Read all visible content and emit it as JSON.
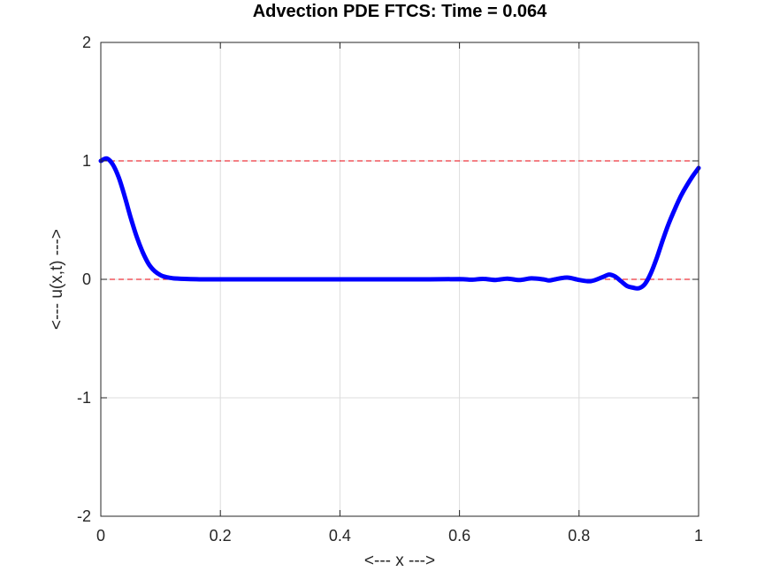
{
  "chart_data": {
    "type": "line",
    "title": "Advection PDE FTCS: Time = 0.064",
    "xlabel": "<--- x --->",
    "ylabel": "<--- u(x,t) --->",
    "xlim": [
      0,
      1
    ],
    "ylim": [
      -2,
      2
    ],
    "xticks": [
      0,
      0.2,
      0.4,
      0.6,
      0.8,
      1
    ],
    "yticks": [
      -2,
      -1,
      0,
      1,
      2
    ],
    "xtick_labels": [
      "0",
      "0.2",
      "0.4",
      "0.6",
      "0.8",
      "1"
    ],
    "ytick_labels": [
      "-2",
      "-1",
      "0",
      "1",
      "2"
    ],
    "grid": true,
    "reference_lines": [
      {
        "y": 1,
        "style": "dashed",
        "color": "#e8000b"
      },
      {
        "y": 0,
        "style": "dashed",
        "color": "#e8000b"
      }
    ],
    "series": [
      {
        "color": "#0000ff",
        "x": [
          0,
          0.01,
          0.02,
          0.03,
          0.04,
          0.05,
          0.06,
          0.07,
          0.08,
          0.09,
          0.1,
          0.11,
          0.12,
          0.14,
          0.16,
          0.2,
          0.3,
          0.4,
          0.5,
          0.55,
          0.6,
          0.62,
          0.64,
          0.66,
          0.68,
          0.7,
          0.72,
          0.74,
          0.75,
          0.76,
          0.78,
          0.8,
          0.82,
          0.84,
          0.85,
          0.86,
          0.87,
          0.88,
          0.89,
          0.9,
          0.91,
          0.92,
          0.93,
          0.94,
          0.95,
          0.96,
          0.97,
          0.98,
          0.99,
          1.0
        ],
        "y": [
          1.0,
          1.02,
          0.97,
          0.86,
          0.7,
          0.52,
          0.36,
          0.23,
          0.13,
          0.07,
          0.035,
          0.018,
          0.01,
          0.004,
          0.001,
          0.0,
          0.0,
          0.0,
          0.0,
          0.0,
          0.002,
          -0.003,
          0.004,
          -0.005,
          0.006,
          -0.006,
          0.008,
          0.0,
          -0.01,
          0.0,
          0.015,
          -0.005,
          -0.015,
          0.02,
          0.04,
          0.025,
          -0.015,
          -0.055,
          -0.07,
          -0.075,
          -0.04,
          0.05,
          0.18,
          0.33,
          0.47,
          0.59,
          0.7,
          0.79,
          0.87,
          0.94
        ]
      }
    ]
  }
}
